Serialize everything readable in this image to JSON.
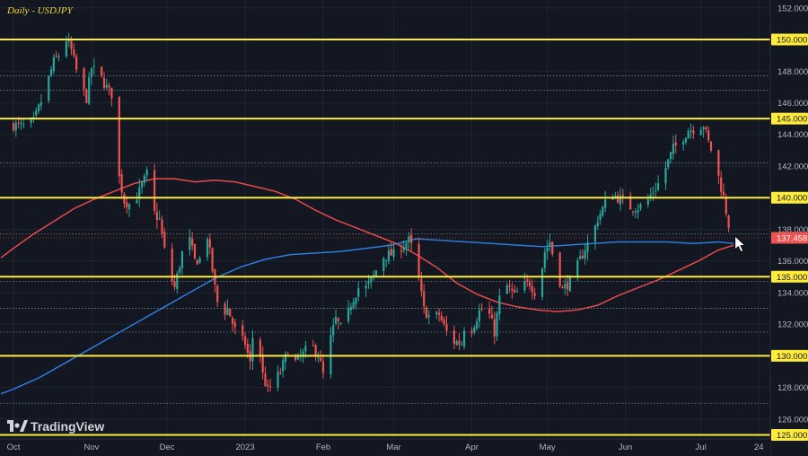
{
  "title": "Daily - USDJPY",
  "logo_text": "TradingView",
  "colors": {
    "background": "#131722",
    "grid": "#1f2431",
    "bull": "#26a69a",
    "bear": "#ef5350",
    "level": "#ffeb3b",
    "ma_red": "#e84a4a",
    "ma_blue": "#2f7bd8",
    "dotted": "#9598a1",
    "price_tag": "#ef5350"
  },
  "icons": [
    "mouse-cursor-icon",
    "tradingview-logo-icon"
  ],
  "chart_data": {
    "type": "candlestick",
    "title": "Daily - USDJPY",
    "y_range": [
      124.8,
      152.5
    ],
    "y_ticks": [
      "152.000",
      "150.000",
      "148.000",
      "146.000",
      "145.000",
      "144.000",
      "142.000",
      "140.000",
      "138.000",
      "137.458",
      "136.000",
      "135.000",
      "134.000",
      "132.000",
      "130.000",
      "128.000",
      "126.000",
      "125.000"
    ],
    "grid_ticks": [
      152,
      148,
      146,
      144,
      142,
      138,
      136,
      134,
      132,
      128,
      126
    ],
    "x_ticks": [
      {
        "label": "Oct",
        "day": 0
      },
      {
        "label": "Nov",
        "day": 31
      },
      {
        "label": "Dec",
        "day": 61
      },
      {
        "label": "2023",
        "day": 92
      },
      {
        "label": "Feb",
        "day": 123
      },
      {
        "label": "Mar",
        "day": 151
      },
      {
        "label": "Apr",
        "day": 182
      },
      {
        "label": "May",
        "day": 212
      },
      {
        "label": "Jun",
        "day": 243
      },
      {
        "label": "Jul",
        "day": 273
      },
      {
        "label": "24",
        "day": 296
      }
    ],
    "horizontal_levels": [
      {
        "price": 150.0,
        "label": "150.000"
      },
      {
        "price": 145.0,
        "label": "145.000"
      },
      {
        "price": 140.0,
        "label": "140.000"
      },
      {
        "price": 135.0,
        "label": "135.000"
      },
      {
        "price": 130.0,
        "label": "130.000"
      },
      {
        "price": 125.0,
        "label": "125.000"
      }
    ],
    "dotted_levels": [
      147.7,
      146.8,
      142.2,
      137.7,
      134.7,
      133.0,
      131.5,
      127.0
    ],
    "current_price": {
      "value": 137.458,
      "label": "137.458"
    },
    "key_closes": [
      {
        "day": 0,
        "price": 144.6
      },
      {
        "day": 4,
        "price": 144.5
      },
      {
        "day": 8,
        "price": 144.8
      },
      {
        "day": 12,
        "price": 146.5
      },
      {
        "day": 16,
        "price": 148.6
      },
      {
        "day": 19,
        "price": 149.2
      },
      {
        "day": 21,
        "price": 150.0
      },
      {
        "day": 23,
        "price": 149.3
      },
      {
        "day": 26,
        "price": 147.4
      },
      {
        "day": 29,
        "price": 146.3
      },
      {
        "day": 31,
        "price": 148.2
      },
      {
        "day": 34,
        "price": 147.8
      },
      {
        "day": 38,
        "price": 146.7
      },
      {
        "day": 40,
        "price": 146.4
      },
      {
        "day": 41,
        "price": 142.0
      },
      {
        "day": 44,
        "price": 139.8
      },
      {
        "day": 47,
        "price": 139.5
      },
      {
        "day": 50,
        "price": 140.4
      },
      {
        "day": 53,
        "price": 141.5
      },
      {
        "day": 55,
        "price": 139.2
      },
      {
        "day": 58,
        "price": 138.6
      },
      {
        "day": 61,
        "price": 135.7
      },
      {
        "day": 64,
        "price": 134.3
      },
      {
        "day": 67,
        "price": 136.5
      },
      {
        "day": 70,
        "price": 137.3
      },
      {
        "day": 72,
        "price": 136.0
      },
      {
        "day": 75,
        "price": 136.2
      },
      {
        "day": 77,
        "price": 137.6
      },
      {
        "day": 80,
        "price": 134.3
      },
      {
        "day": 82,
        "price": 132.5
      },
      {
        "day": 85,
        "price": 133.0
      },
      {
        "day": 89,
        "price": 131.2
      },
      {
        "day": 92,
        "price": 130.8
      },
      {
        "day": 94,
        "price": 129.5
      },
      {
        "day": 96,
        "price": 132.8
      },
      {
        "day": 99,
        "price": 128.8
      },
      {
        "day": 101,
        "price": 127.8
      },
      {
        "day": 104,
        "price": 128.5
      },
      {
        "day": 106,
        "price": 129.0
      },
      {
        "day": 109,
        "price": 130.3
      },
      {
        "day": 112,
        "price": 129.6
      },
      {
        "day": 115,
        "price": 130.1
      },
      {
        "day": 118,
        "price": 130.7
      },
      {
        "day": 121,
        "price": 130.1
      },
      {
        "day": 123,
        "price": 128.8
      },
      {
        "day": 126,
        "price": 131.1
      },
      {
        "day": 128,
        "price": 132.3
      },
      {
        "day": 131,
        "price": 131.5
      },
      {
        "day": 134,
        "price": 133.3
      },
      {
        "day": 137,
        "price": 134.3
      },
      {
        "day": 140,
        "price": 134.3
      },
      {
        "day": 143,
        "price": 135.0
      },
      {
        "day": 146,
        "price": 136.2
      },
      {
        "day": 149,
        "price": 136.4
      },
      {
        "day": 151,
        "price": 136.4
      },
      {
        "day": 154,
        "price": 136.9
      },
      {
        "day": 157,
        "price": 137.3
      },
      {
        "day": 159,
        "price": 136.5
      },
      {
        "day": 161,
        "price": 134.8
      },
      {
        "day": 163,
        "price": 132.9
      },
      {
        "day": 166,
        "price": 132.3
      },
      {
        "day": 169,
        "price": 132.6
      },
      {
        "day": 172,
        "price": 131.5
      },
      {
        "day": 175,
        "price": 130.9
      },
      {
        "day": 178,
        "price": 130.8
      },
      {
        "day": 180,
        "price": 132.8
      },
      {
        "day": 182,
        "price": 131.7
      },
      {
        "day": 185,
        "price": 132.8
      },
      {
        "day": 188,
        "price": 133.1
      },
      {
        "day": 191,
        "price": 131.5
      },
      {
        "day": 193,
        "price": 133.6
      },
      {
        "day": 196,
        "price": 134.4
      },
      {
        "day": 199,
        "price": 133.8
      },
      {
        "day": 202,
        "price": 134.4
      },
      {
        "day": 205,
        "price": 134.6
      },
      {
        "day": 208,
        "price": 133.8
      },
      {
        "day": 211,
        "price": 136.6
      },
      {
        "day": 213,
        "price": 137.2
      },
      {
        "day": 215,
        "price": 135.8
      },
      {
        "day": 218,
        "price": 134.2
      },
      {
        "day": 221,
        "price": 134.7
      },
      {
        "day": 224,
        "price": 135.7
      },
      {
        "day": 227,
        "price": 136.8
      },
      {
        "day": 230,
        "price": 137.6
      },
      {
        "day": 232,
        "price": 138.7
      },
      {
        "day": 234,
        "price": 139.3
      },
      {
        "day": 237,
        "price": 140.3
      },
      {
        "day": 240,
        "price": 140.0
      },
      {
        "day": 243,
        "price": 139.7
      },
      {
        "day": 245,
        "price": 139.4
      },
      {
        "day": 248,
        "price": 139.4
      },
      {
        "day": 251,
        "price": 139.6
      },
      {
        "day": 254,
        "price": 140.4
      },
      {
        "day": 257,
        "price": 141.1
      },
      {
        "day": 259,
        "price": 141.9
      },
      {
        "day": 262,
        "price": 143.1
      },
      {
        "day": 265,
        "price": 143.6
      },
      {
        "day": 268,
        "price": 144.3
      },
      {
        "day": 271,
        "price": 144.4
      },
      {
        "day": 274,
        "price": 144.6
      },
      {
        "day": 276,
        "price": 143.5
      },
      {
        "day": 278,
        "price": 142.6
      },
      {
        "day": 280,
        "price": 141.3
      },
      {
        "day": 282,
        "price": 140.0
      },
      {
        "day": 284,
        "price": 138.3
      },
      {
        "day": 286,
        "price": 137.458
      }
    ],
    "ma_red": [
      {
        "day": -5,
        "price": 136.2
      },
      {
        "day": 0,
        "price": 136.8
      },
      {
        "day": 8,
        "price": 137.7
      },
      {
        "day": 16,
        "price": 138.5
      },
      {
        "day": 24,
        "price": 139.3
      },
      {
        "day": 32,
        "price": 139.9
      },
      {
        "day": 40,
        "price": 140.4
      },
      {
        "day": 48,
        "price": 140.9
      },
      {
        "day": 56,
        "price": 141.2
      },
      {
        "day": 64,
        "price": 141.2
      },
      {
        "day": 72,
        "price": 141.0
      },
      {
        "day": 80,
        "price": 141.1
      },
      {
        "day": 88,
        "price": 141.0
      },
      {
        "day": 96,
        "price": 140.7
      },
      {
        "day": 104,
        "price": 140.4
      },
      {
        "day": 112,
        "price": 139.9
      },
      {
        "day": 120,
        "price": 139.2
      },
      {
        "day": 128,
        "price": 138.6
      },
      {
        "day": 136,
        "price": 138.1
      },
      {
        "day": 144,
        "price": 137.6
      },
      {
        "day": 152,
        "price": 137.1
      },
      {
        "day": 160,
        "price": 136.4
      },
      {
        "day": 168,
        "price": 135.6
      },
      {
        "day": 176,
        "price": 134.6
      },
      {
        "day": 184,
        "price": 133.9
      },
      {
        "day": 192,
        "price": 133.4
      },
      {
        "day": 200,
        "price": 133.1
      },
      {
        "day": 208,
        "price": 132.9
      },
      {
        "day": 216,
        "price": 132.8
      },
      {
        "day": 224,
        "price": 132.9
      },
      {
        "day": 232,
        "price": 133.2
      },
      {
        "day": 240,
        "price": 133.8
      },
      {
        "day": 248,
        "price": 134.3
      },
      {
        "day": 256,
        "price": 134.8
      },
      {
        "day": 264,
        "price": 135.4
      },
      {
        "day": 272,
        "price": 136.0
      },
      {
        "day": 280,
        "price": 136.7
      },
      {
        "day": 286,
        "price": 137.0
      }
    ],
    "ma_blue": [
      {
        "day": -5,
        "price": 127.6
      },
      {
        "day": 0,
        "price": 127.9
      },
      {
        "day": 10,
        "price": 128.6
      },
      {
        "day": 20,
        "price": 129.5
      },
      {
        "day": 30,
        "price": 130.4
      },
      {
        "day": 40,
        "price": 131.3
      },
      {
        "day": 50,
        "price": 132.2
      },
      {
        "day": 60,
        "price": 133.1
      },
      {
        "day": 70,
        "price": 134.0
      },
      {
        "day": 80,
        "price": 134.9
      },
      {
        "day": 90,
        "price": 135.6
      },
      {
        "day": 100,
        "price": 136.1
      },
      {
        "day": 110,
        "price": 136.4
      },
      {
        "day": 120,
        "price": 136.5
      },
      {
        "day": 130,
        "price": 136.6
      },
      {
        "day": 140,
        "price": 136.8
      },
      {
        "day": 150,
        "price": 137.0
      },
      {
        "day": 160,
        "price": 137.4
      },
      {
        "day": 170,
        "price": 137.3
      },
      {
        "day": 180,
        "price": 137.2
      },
      {
        "day": 190,
        "price": 137.1
      },
      {
        "day": 200,
        "price": 137.0
      },
      {
        "day": 210,
        "price": 136.9
      },
      {
        "day": 220,
        "price": 137.0
      },
      {
        "day": 230,
        "price": 137.1
      },
      {
        "day": 240,
        "price": 137.2
      },
      {
        "day": 250,
        "price": 137.2
      },
      {
        "day": 260,
        "price": 137.2
      },
      {
        "day": 270,
        "price": 137.1
      },
      {
        "day": 280,
        "price": 137.2
      },
      {
        "day": 286,
        "price": 137.1
      }
    ]
  }
}
